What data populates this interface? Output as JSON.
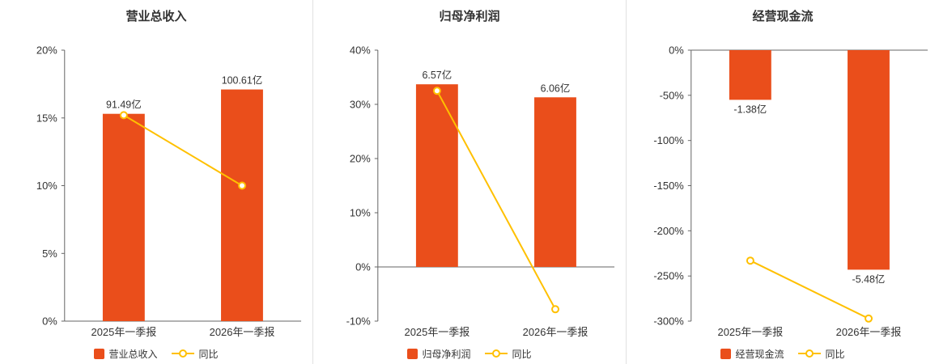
{
  "page": {
    "background": "#ffffff",
    "divider_color": "#e0e0e0"
  },
  "style": {
    "bar_color": "#ea4e1b",
    "line_color": "#ffc000",
    "axis_color": "#666666",
    "text_color": "#333333"
  },
  "chart_data": [
    {
      "type": "bar",
      "title": "营业总收入",
      "categories": [
        "2025年一季报",
        "2026年一季报"
      ],
      "ylim": [
        0,
        20
      ],
      "yticks": [
        0,
        5,
        10,
        15,
        20
      ],
      "ytick_labels": [
        "0%",
        "5%",
        "10%",
        "15%",
        "20%"
      ],
      "grid": false,
      "legend_position": "bottom",
      "bar_series": {
        "name": "营业总收入",
        "labels": [
          "91.49亿",
          "100.61亿"
        ],
        "values_axis_pct": [
          15.3,
          17.1
        ]
      },
      "line_series": {
        "name": "同比",
        "values_pct": [
          15.2,
          10.0
        ]
      }
    },
    {
      "type": "bar",
      "title": "归母净利润",
      "categories": [
        "2025年一季报",
        "2026年一季报"
      ],
      "ylim": [
        -10,
        40
      ],
      "yticks": [
        -10,
        0,
        10,
        20,
        30,
        40
      ],
      "ytick_labels": [
        "-10%",
        "0%",
        "10%",
        "20%",
        "30%",
        "40%"
      ],
      "grid": false,
      "legend_position": "bottom",
      "bar_series": {
        "name": "归母净利润",
        "labels": [
          "6.57亿",
          "6.06亿"
        ],
        "values_axis_pct": [
          33.7,
          31.3
        ]
      },
      "line_series": {
        "name": "同比",
        "values_pct": [
          32.5,
          -7.8
        ]
      }
    },
    {
      "type": "bar",
      "title": "经营现金流",
      "categories": [
        "2025年一季报",
        "2026年一季报"
      ],
      "ylim": [
        -300,
        0
      ],
      "yticks": [
        0,
        -50,
        -100,
        -150,
        -200,
        -250,
        -300
      ],
      "ytick_labels": [
        "0%",
        "-50%",
        "-100%",
        "-150%",
        "-200%",
        "-250%",
        "-300%"
      ],
      "grid": false,
      "legend_position": "bottom",
      "bar_series": {
        "name": "经营现金流",
        "labels": [
          "-1.38亿",
          "-5.48亿"
        ],
        "values_axis_pct": [
          -55,
          -243
        ]
      },
      "line_series": {
        "name": "同比",
        "values_pct": [
          -233,
          -297.1
        ]
      }
    }
  ]
}
